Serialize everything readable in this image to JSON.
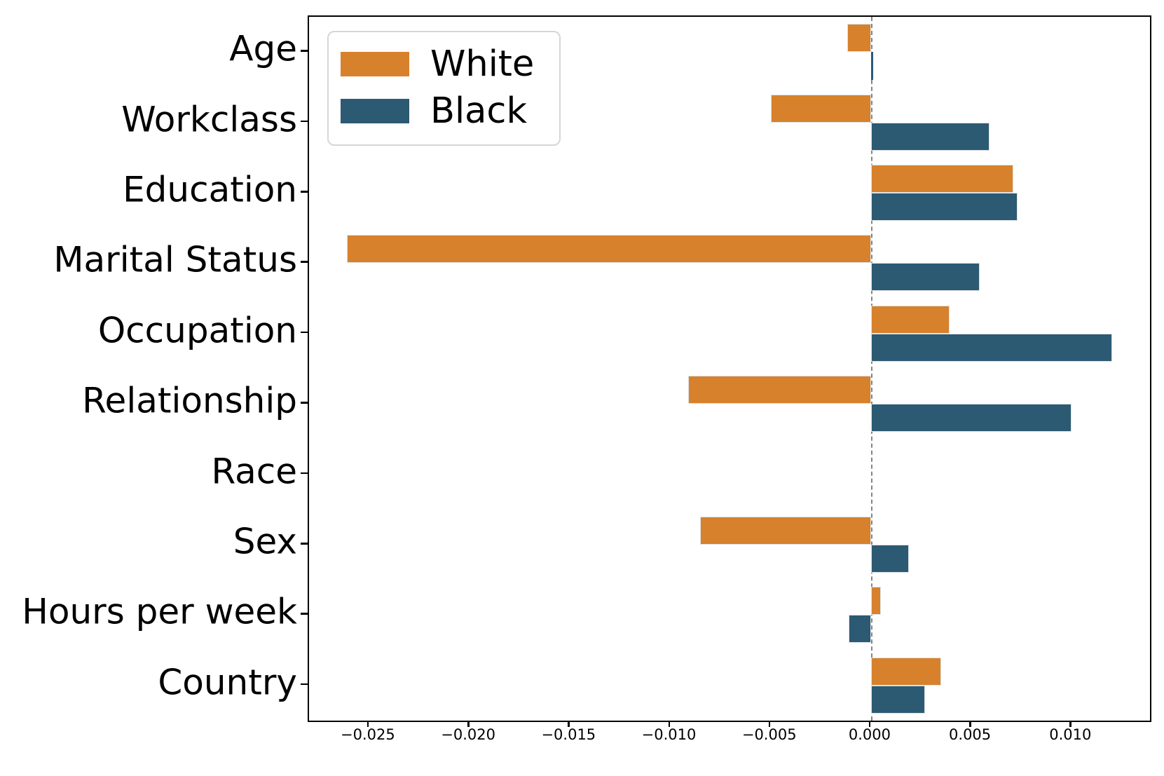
{
  "chart_data": {
    "type": "bar",
    "orientation": "horizontal",
    "title": "",
    "xlabel": "",
    "ylabel": "",
    "grid": false,
    "categories": [
      "Age",
      "Workclass",
      "Education",
      "Marital Status",
      "Occupation",
      "Relationship",
      "Race",
      "Sex",
      "Hours per week",
      "Country"
    ],
    "series": [
      {
        "name": "White",
        "color": "#D7812C",
        "values": [
          -0.0012,
          -0.005,
          0.0071,
          -0.0261,
          0.0039,
          -0.0091,
          0.0,
          -0.0085,
          0.0005,
          0.0035
        ]
      },
      {
        "name": "Black",
        "color": "#2C5A72",
        "values": [
          0.0001,
          0.0059,
          0.0073,
          0.0054,
          0.012,
          0.01,
          0.0,
          0.0019,
          -0.0011,
          0.0027
        ]
      }
    ],
    "xlim": [
      -0.028,
      0.0139
    ],
    "x_ticks": [
      -0.025,
      -0.02,
      -0.015,
      -0.01,
      -0.005,
      0.0,
      0.005,
      0.01
    ],
    "x_tick_labels": [
      "−0.025",
      "−0.020",
      "−0.015",
      "−0.010",
      "−0.005",
      "0.000",
      "0.005",
      "0.010"
    ],
    "zero_line": {
      "x": 0.0,
      "style": "dashed",
      "color": "#848484"
    },
    "legend": {
      "position": "upper left"
    }
  }
}
